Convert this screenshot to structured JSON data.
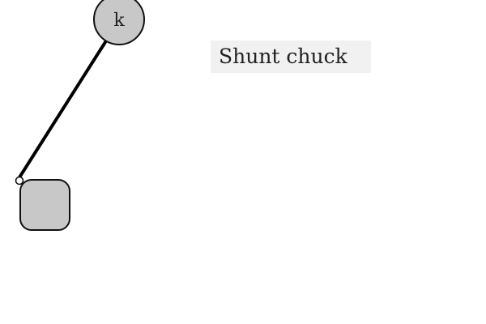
{
  "diagram": {
    "top_node": {
      "label": "k",
      "shape": "circle",
      "fill_color": "#c8c8c8",
      "stroke_color": "#111111"
    },
    "bottom_node": {
      "label": "",
      "shape": "rounded-square",
      "fill_color": "#c8c8c8",
      "stroke_color": "#111111"
    },
    "connector": {
      "stroke_color": "#000000",
      "end_marker": "open-circle"
    },
    "caption": {
      "text": "Shunt chuck",
      "background_color": "#f1f1f1"
    }
  }
}
